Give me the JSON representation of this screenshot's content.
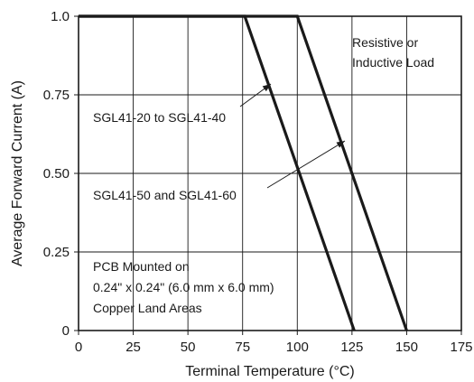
{
  "chart_data": {
    "type": "line",
    "xlabel": "Terminal Temperature (°C)",
    "ylabel": "Average Forward Current (A)",
    "xlim": [
      0,
      175
    ],
    "ylim": [
      0,
      1.0
    ],
    "x_ticks": [
      0,
      25,
      50,
      75,
      100,
      125,
      150,
      175
    ],
    "x_tick_labels": [
      "0",
      "25",
      "50",
      "75",
      "100",
      "125",
      "150",
      "175"
    ],
    "y_ticks": [
      0,
      0.25,
      0.5,
      0.75,
      1.0
    ],
    "y_tick_labels": [
      "0",
      "0.25",
      "0.50",
      "0.75",
      "1.0"
    ],
    "grid": true,
    "series": [
      {
        "name": "SGL41-20 to SGL41-40",
        "points": [
          [
            0,
            1.0
          ],
          [
            100,
            1.0
          ],
          [
            150,
            0
          ]
        ]
      },
      {
        "name": "SGL41-50 and SGL41-60",
        "points": [
          [
            0,
            1.0
          ],
          [
            76,
            1.0
          ],
          [
            126,
            0
          ]
        ]
      }
    ],
    "annotations": {
      "load": [
        "Resistive or",
        "Inductive Load"
      ],
      "mount": [
        "PCB Mounted on",
        "0.24\" x 0.24\" (6.0 mm x 6.0 mm)",
        "Copper Land Areas"
      ]
    }
  }
}
